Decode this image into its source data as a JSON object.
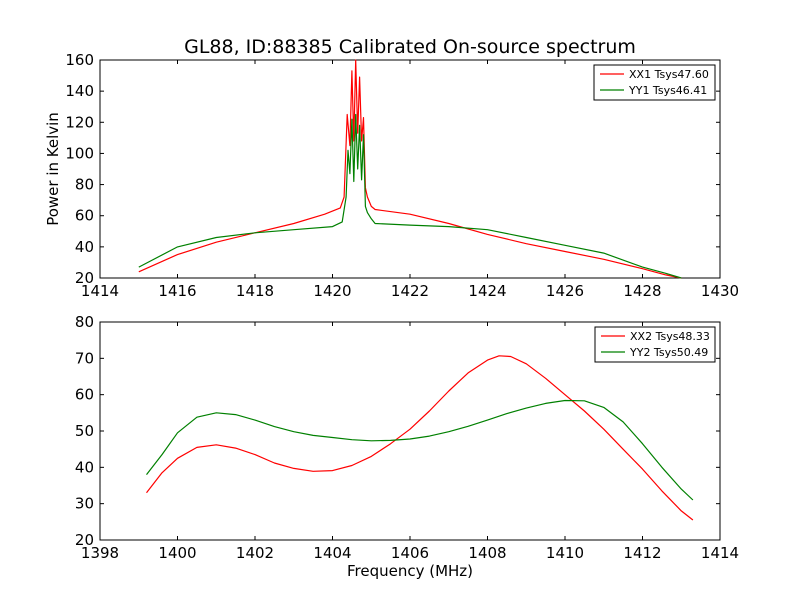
{
  "chart_data": [
    {
      "type": "line",
      "title": "GL88, ID:88385 Calibrated On-source spectrum",
      "xlabel": "",
      "ylabel": "Power in Kelvin",
      "xlim": [
        1414,
        1430
      ],
      "ylim": [
        20,
        160
      ],
      "xticks": [
        "1414",
        "1416",
        "1418",
        "1420",
        "1422",
        "1424",
        "1426",
        "1428",
        "1430"
      ],
      "yticks": [
        "20",
        "40",
        "60",
        "80",
        "100",
        "120",
        "140",
        "160"
      ],
      "legend_position": "top-right",
      "series": [
        {
          "name": "XX1 Tsys47.60",
          "color": "#ff0000",
          "x": [
            1415.0,
            1416.0,
            1417.0,
            1418.0,
            1419.0,
            1419.8,
            1420.2,
            1420.3,
            1420.38,
            1420.45,
            1420.5,
            1420.55,
            1420.6,
            1420.65,
            1420.7,
            1420.75,
            1420.8,
            1420.85,
            1420.9,
            1421.0,
            1421.1,
            1422.0,
            1423.0,
            1424.0,
            1425.0,
            1426.0,
            1427.0,
            1428.0,
            1428.6,
            1429.0
          ],
          "values": [
            24,
            35,
            43,
            49,
            55,
            61,
            65,
            72,
            125,
            105,
            153,
            108,
            160,
            113,
            149,
            108,
            123,
            78,
            72,
            66,
            64,
            61,
            55,
            48,
            42,
            37,
            32,
            26,
            22,
            20
          ]
        },
        {
          "name": "YY1 Tsys46.41",
          "color": "#008000",
          "x": [
            1415.0,
            1416.0,
            1417.0,
            1418.0,
            1419.0,
            1420.0,
            1420.25,
            1420.35,
            1420.4,
            1420.45,
            1420.5,
            1420.55,
            1420.6,
            1420.65,
            1420.7,
            1420.75,
            1420.8,
            1420.85,
            1420.9,
            1421.0,
            1421.1,
            1422.0,
            1423.0,
            1424.0,
            1425.0,
            1426.0,
            1427.0,
            1428.0,
            1428.6,
            1429.0
          ],
          "values": [
            27,
            40,
            46,
            49,
            51,
            53,
            56,
            72,
            102,
            87,
            122,
            82,
            125,
            90,
            118,
            83,
            112,
            66,
            62,
            58,
            55,
            54,
            53,
            51,
            46,
            41,
            36,
            27,
            23,
            20
          ]
        }
      ]
    },
    {
      "type": "line",
      "title": "",
      "xlabel": "Frequency (MHz)",
      "ylabel": "",
      "xlim": [
        1398,
        1414
      ],
      "ylim": [
        20,
        80
      ],
      "xticks": [
        "1398",
        "1400",
        "1402",
        "1404",
        "1406",
        "1408",
        "1410",
        "1412",
        "1414"
      ],
      "yticks": [
        "20",
        "30",
        "40",
        "50",
        "60",
        "70",
        "80"
      ],
      "legend_position": "top-right",
      "series": [
        {
          "name": "XX2 Tsys48.33",
          "color": "#ff0000",
          "x": [
            1399.2,
            1399.6,
            1400.0,
            1400.5,
            1401.0,
            1401.5,
            1402.0,
            1402.5,
            1403.0,
            1403.5,
            1404.0,
            1404.5,
            1405.0,
            1405.5,
            1406.0,
            1406.5,
            1407.0,
            1407.5,
            1408.0,
            1408.3,
            1408.6,
            1409.0,
            1409.5,
            1410.0,
            1410.5,
            1411.0,
            1411.5,
            1412.0,
            1412.5,
            1413.0,
            1413.3
          ],
          "values": [
            33,
            38.5,
            42.5,
            45.5,
            46.2,
            45.3,
            43.5,
            41.2,
            39.7,
            38.9,
            39.1,
            40.5,
            43.0,
            46.5,
            50.5,
            55.5,
            61.0,
            66.0,
            69.5,
            70.7,
            70.5,
            68.5,
            64.5,
            60.0,
            55.5,
            50.5,
            45.0,
            39.5,
            33.5,
            28.0,
            25.5
          ]
        },
        {
          "name": "YY2 Tsys50.49",
          "color": "#008000",
          "x": [
            1399.2,
            1399.6,
            1400.0,
            1400.5,
            1401.0,
            1401.5,
            1402.0,
            1402.5,
            1403.0,
            1403.5,
            1404.0,
            1404.5,
            1405.0,
            1405.5,
            1406.0,
            1406.5,
            1407.0,
            1407.5,
            1408.0,
            1408.5,
            1409.0,
            1409.5,
            1410.0,
            1410.5,
            1411.0,
            1411.5,
            1412.0,
            1412.5,
            1413.0,
            1413.3
          ],
          "values": [
            38,
            43.5,
            49.5,
            53.8,
            55.0,
            54.5,
            53.0,
            51.2,
            49.8,
            48.8,
            48.2,
            47.6,
            47.3,
            47.4,
            47.8,
            48.6,
            49.8,
            51.3,
            53.0,
            54.8,
            56.3,
            57.6,
            58.4,
            58.3,
            56.5,
            52.5,
            46.5,
            40.0,
            34.0,
            31.0
          ]
        }
      ]
    }
  ]
}
